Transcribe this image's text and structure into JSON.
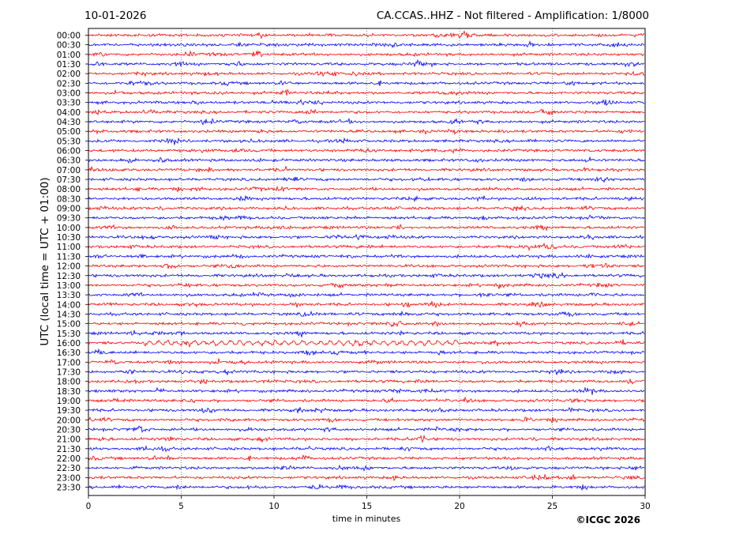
{
  "header": {
    "date": "10-01-2026",
    "station_info": "CA.CCAS..HHZ - Not filtered - Amplification: 1/8000"
  },
  "chart_data": {
    "type": "line",
    "title": "CA.CCAS..HHZ - Not filtered - Amplification: 1/8000",
    "xlabel": "time in minutes",
    "ylabel": "UTC (local time = UTC + 01:00)",
    "xlim": [
      0,
      30
    ],
    "x_ticks": [
      "0",
      "5",
      "10",
      "15",
      "20",
      "25",
      "30"
    ],
    "grid": "vertical dotted at x ticks",
    "row_labels": [
      "00:00",
      "00:30",
      "01:00",
      "01:30",
      "02:00",
      "02:30",
      "03:00",
      "03:30",
      "04:00",
      "04:30",
      "05:00",
      "05:30",
      "06:00",
      "06:30",
      "07:00",
      "07:30",
      "08:00",
      "08:30",
      "09:00",
      "09:30",
      "10:00",
      "10:30",
      "11:00",
      "11:30",
      "12:00",
      "12:30",
      "13:00",
      "13:30",
      "14:00",
      "14:30",
      "15:00",
      "15:30",
      "16:00",
      "16:30",
      "17:00",
      "17:30",
      "18:00",
      "18:30",
      "19:00",
      "19:30",
      "20:00",
      "20:30",
      "21:00",
      "21:30",
      "22:00",
      "22:30",
      "23:00",
      "23:30"
    ],
    "trace_colors": [
      "#ff0000",
      "#0000ff"
    ],
    "notable_event": {
      "row": "16:00",
      "x_range_minutes": [
        3,
        20
      ],
      "description": "low-frequency oscillation"
    }
  },
  "footer": {
    "credit": "©ICGC 2026"
  }
}
